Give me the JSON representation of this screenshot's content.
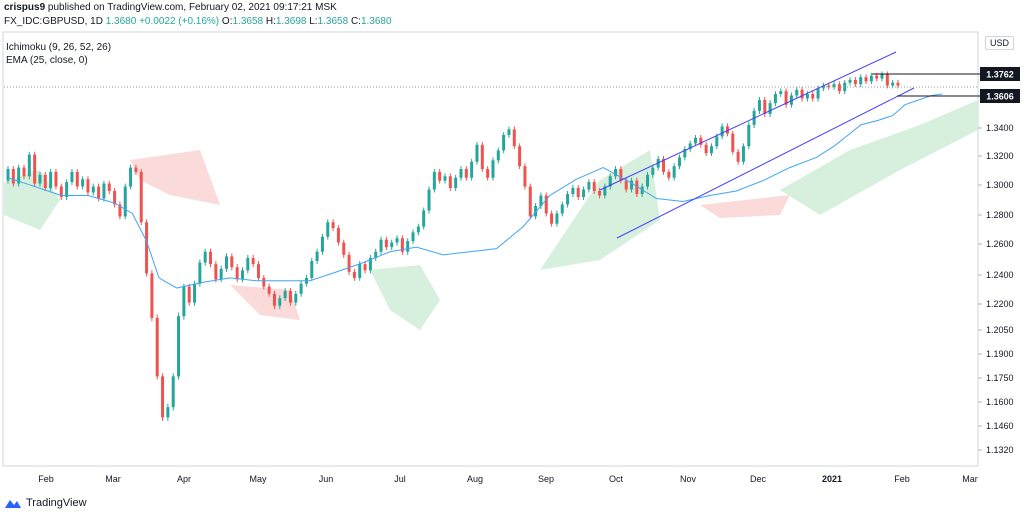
{
  "header": {
    "author": "crispus9",
    "published_text": "published on TradingView.com, February 02, 2021 09:17:21 MSK",
    "symbol": "FX_IDC:GBPUSD, 1D",
    "last": "1.3680",
    "change": "+0.0022 (+0.16%)",
    "o_label": "O:",
    "o_value": "1.3658",
    "h_label": "H:",
    "h_value": "1.3698",
    "l_label": "L:",
    "l_value": "1.3658",
    "c_label": "C:",
    "c_value": "1.3680"
  },
  "indicators": {
    "ichimoku": "Ichimoku (9, 26, 52, 26)",
    "ema": "EMA (25, close, 0)"
  },
  "currency_badge": "USD",
  "brand": "TradingView",
  "colors": {
    "up": "#26a69a",
    "down": "#ef5350",
    "ema": "#42a5f5",
    "channel": "#3f3fff",
    "cloud_bull": "#d7f0dd",
    "cloud_bear": "#fbdada"
  },
  "chart_data": {
    "type": "candlestick",
    "y_scale": {
      "range": [
        1.316,
        1.3885
      ],
      "ticks": [
        "1.3400",
        "1.3200",
        "1.3000",
        "1.2800",
        "1.2600",
        "1.2400",
        "1.2200",
        "1.2050",
        "1.1900",
        "1.1750",
        "1.1600",
        "1.1460",
        "1.1320"
      ],
      "tick_values": [
        1.34,
        1.32,
        1.3,
        1.28,
        1.26,
        1.24,
        1.22,
        1.205,
        1.19,
        1.175,
        1.16,
        1.146,
        1.132
      ]
    },
    "x_axis": {
      "labels": [
        "Feb",
        "Mar",
        "Apr",
        "May",
        "Jun",
        "Jul",
        "Aug",
        "Sep",
        "Oct",
        "Nov",
        "Dec",
        "2021",
        "Feb",
        "Mar"
      ],
      "bold": [
        "2021"
      ]
    },
    "price_labels": [
      {
        "text": "1.3762",
        "value": 1.3762
      },
      {
        "text": "1.3606",
        "value": 1.3606
      }
    ],
    "ema_points": [
      [
        0,
        1.305
      ],
      [
        10,
        1.301
      ],
      [
        20,
        1.297
      ],
      [
        30,
        1.293
      ],
      [
        45,
        1.293
      ],
      [
        60,
        1.288
      ],
      [
        70,
        1.281
      ],
      [
        78,
        1.262
      ],
      [
        85,
        1.238
      ],
      [
        95,
        1.231
      ],
      [
        110,
        1.235
      ],
      [
        125,
        1.238
      ],
      [
        140,
        1.236
      ],
      [
        155,
        1.236
      ],
      [
        170,
        1.236
      ],
      [
        185,
        1.242
      ],
      [
        200,
        1.248
      ],
      [
        215,
        1.255
      ],
      [
        230,
        1.258
      ],
      [
        245,
        1.253
      ],
      [
        260,
        1.255
      ],
      [
        275,
        1.257
      ],
      [
        290,
        1.272
      ],
      [
        305,
        1.293
      ],
      [
        320,
        1.304
      ],
      [
        335,
        1.312
      ],
      [
        350,
        1.302
      ],
      [
        365,
        1.291
      ],
      [
        380,
        1.289
      ],
      [
        395,
        1.293
      ],
      [
        410,
        1.296
      ],
      [
        425,
        1.303
      ],
      [
        440,
        1.312
      ],
      [
        455,
        1.319
      ],
      [
        465,
        1.327
      ],
      [
        472,
        1.334
      ],
      [
        480,
        1.342
      ],
      [
        490,
        1.345
      ],
      [
        498,
        1.348
      ],
      [
        505,
        1.355
      ],
      [
        515,
        1.359
      ],
      [
        520,
        1.361
      ],
      [
        526,
        1.362
      ]
    ],
    "candles": [
      [
        0,
        1.303,
        1.311
      ],
      [
        3,
        1.311,
        1.301
      ],
      [
        6,
        1.301,
        1.312
      ],
      [
        9,
        1.312,
        1.306
      ],
      [
        12,
        1.306,
        1.321
      ],
      [
        15,
        1.321,
        1.301
      ],
      [
        18,
        1.301,
        1.307
      ],
      [
        21,
        1.307,
        1.298
      ],
      [
        24,
        1.298,
        1.309
      ],
      [
        27,
        1.309,
        1.299
      ],
      [
        30,
        1.299,
        1.292
      ],
      [
        33,
        1.292,
        1.302
      ],
      [
        36,
        1.302,
        1.309
      ],
      [
        39,
        1.309,
        1.299
      ],
      [
        42,
        1.299,
        1.304
      ],
      [
        45,
        1.304,
        1.295
      ],
      [
        48,
        1.295,
        1.299
      ],
      [
        51,
        1.299,
        1.291
      ],
      [
        54,
        1.291,
        1.301
      ],
      [
        57,
        1.301,
        1.296
      ],
      [
        60,
        1.296,
        1.287
      ],
      [
        63,
        1.287,
        1.279
      ],
      [
        66,
        1.279,
        1.299
      ],
      [
        69,
        1.299,
        1.312
      ],
      [
        72,
        1.312,
        1.309
      ],
      [
        75,
        1.309,
        1.275
      ],
      [
        78,
        1.275,
        1.241
      ],
      [
        81,
        1.241,
        1.212
      ],
      [
        84,
        1.212,
        1.176
      ],
      [
        87,
        1.176,
        1.151
      ],
      [
        90,
        1.151,
        1.157
      ],
      [
        93,
        1.157,
        1.176
      ],
      [
        96,
        1.176,
        1.213
      ],
      [
        99,
        1.213,
        1.232
      ],
      [
        102,
        1.232,
        1.221
      ],
      [
        105,
        1.221,
        1.234
      ],
      [
        108,
        1.234,
        1.248
      ],
      [
        111,
        1.248,
        1.255
      ],
      [
        114,
        1.255,
        1.247
      ],
      [
        117,
        1.247,
        1.237
      ],
      [
        120,
        1.237,
        1.244
      ],
      [
        123,
        1.244,
        1.252
      ],
      [
        126,
        1.252,
        1.245
      ],
      [
        129,
        1.245,
        1.237
      ],
      [
        132,
        1.237,
        1.243
      ],
      [
        135,
        1.243,
        1.251
      ],
      [
        138,
        1.251,
        1.247
      ],
      [
        141,
        1.247,
        1.238
      ],
      [
        144,
        1.238,
        1.232
      ],
      [
        147,
        1.232,
        1.227
      ],
      [
        150,
        1.227,
        1.219
      ],
      [
        153,
        1.219,
        1.224
      ],
      [
        156,
        1.224,
        1.229
      ],
      [
        159,
        1.229,
        1.221
      ],
      [
        162,
        1.221,
        1.227
      ],
      [
        165,
        1.227,
        1.234
      ],
      [
        168,
        1.234,
        1.238
      ],
      [
        171,
        1.238,
        1.249
      ],
      [
        174,
        1.249,
        1.255
      ],
      [
        177,
        1.255,
        1.265
      ],
      [
        180,
        1.265,
        1.275
      ],
      [
        183,
        1.275,
        1.271
      ],
      [
        186,
        1.271,
        1.261
      ],
      [
        189,
        1.261,
        1.253
      ],
      [
        192,
        1.253,
        1.242
      ],
      [
        195,
        1.242,
        1.238
      ],
      [
        198,
        1.238,
        1.247
      ],
      [
        201,
        1.247,
        1.243
      ],
      [
        204,
        1.243,
        1.251
      ],
      [
        207,
        1.251,
        1.255
      ],
      [
        210,
        1.255,
        1.263
      ],
      [
        213,
        1.263,
        1.258
      ],
      [
        216,
        1.258,
        1.261
      ],
      [
        219,
        1.261,
        1.264
      ],
      [
        222,
        1.264,
        1.255
      ],
      [
        225,
        1.255,
        1.262
      ],
      [
        228,
        1.262,
        1.268
      ],
      [
        231,
        1.268,
        1.272
      ],
      [
        234,
        1.272,
        1.283
      ],
      [
        237,
        1.283,
        1.297
      ],
      [
        240,
        1.297,
        1.309
      ],
      [
        243,
        1.309,
        1.303
      ],
      [
        246,
        1.303,
        1.306
      ],
      [
        249,
        1.306,
        1.298
      ],
      [
        252,
        1.298,
        1.305
      ],
      [
        255,
        1.305,
        1.311
      ],
      [
        258,
        1.311,
        1.305
      ],
      [
        261,
        1.305,
        1.316
      ],
      [
        264,
        1.316,
        1.328
      ],
      [
        267,
        1.328,
        1.311
      ],
      [
        270,
        1.311,
        1.305
      ],
      [
        273,
        1.305,
        1.317
      ],
      [
        276,
        1.317,
        1.324
      ],
      [
        279,
        1.324,
        1.335
      ],
      [
        282,
        1.335,
        1.339
      ],
      [
        285,
        1.339,
        1.327
      ],
      [
        288,
        1.327,
        1.313
      ],
      [
        291,
        1.313,
        1.299
      ],
      [
        294,
        1.299,
        1.279
      ],
      [
        297,
        1.279,
        1.286
      ],
      [
        300,
        1.286,
        1.293
      ],
      [
        303,
        1.293,
        1.281
      ],
      [
        306,
        1.281,
        1.274
      ],
      [
        309,
        1.274,
        1.281
      ],
      [
        312,
        1.281,
        1.287
      ],
      [
        315,
        1.287,
        1.294
      ],
      [
        318,
        1.294,
        1.298
      ],
      [
        321,
        1.298,
        1.292
      ],
      [
        324,
        1.292,
        1.297
      ],
      [
        327,
        1.297,
        1.302
      ],
      [
        330,
        1.302,
        1.296
      ],
      [
        333,
        1.296,
        1.293
      ],
      [
        336,
        1.293,
        1.299
      ],
      [
        339,
        1.299,
        1.306
      ],
      [
        342,
        1.306,
        1.311
      ],
      [
        345,
        1.311,
        1.303
      ],
      [
        348,
        1.303,
        1.297
      ],
      [
        351,
        1.297,
        1.303
      ],
      [
        354,
        1.303,
        1.294
      ],
      [
        357,
        1.294,
        1.299
      ],
      [
        360,
        1.299,
        1.307
      ],
      [
        363,
        1.307,
        1.312
      ],
      [
        366,
        1.312,
        1.318
      ],
      [
        369,
        1.318,
        1.309
      ],
      [
        372,
        1.309,
        1.305
      ],
      [
        375,
        1.305,
        1.313
      ],
      [
        378,
        1.313,
        1.319
      ],
      [
        381,
        1.319,
        1.325
      ],
      [
        384,
        1.325,
        1.329
      ],
      [
        387,
        1.329,
        1.333
      ],
      [
        390,
        1.333,
        1.328
      ],
      [
        393,
        1.328,
        1.322
      ],
      [
        396,
        1.322,
        1.327
      ],
      [
        399,
        1.327,
        1.334
      ],
      [
        402,
        1.334,
        1.341
      ],
      [
        405,
        1.341,
        1.336
      ],
      [
        408,
        1.336,
        1.323
      ],
      [
        411,
        1.323,
        1.316
      ],
      [
        414,
        1.316,
        1.327
      ],
      [
        417,
        1.327,
        1.342
      ],
      [
        420,
        1.342,
        1.351
      ],
      [
        423,
        1.351,
        1.358
      ],
      [
        426,
        1.358,
        1.349
      ],
      [
        429,
        1.349,
        1.356
      ],
      [
        432,
        1.356,
        1.362
      ],
      [
        435,
        1.362,
        1.364
      ],
      [
        438,
        1.364,
        1.355
      ],
      [
        441,
        1.355,
        1.361
      ],
      [
        444,
        1.361,
        1.365
      ],
      [
        447,
        1.365,
        1.359
      ],
      [
        450,
        1.359,
        1.362
      ],
      [
        453,
        1.362,
        1.359
      ],
      [
        456,
        1.359,
        1.366
      ],
      [
        459,
        1.366,
        1.368
      ],
      [
        462,
        1.368,
        1.367
      ],
      [
        465,
        1.367,
        1.369
      ],
      [
        468,
        1.369,
        1.364
      ],
      [
        471,
        1.364,
        1.37
      ],
      [
        474,
        1.37,
        1.372
      ],
      [
        477,
        1.372,
        1.369
      ],
      [
        480,
        1.369,
        1.374
      ],
      [
        483,
        1.374,
        1.371
      ],
      [
        486,
        1.371,
        1.375
      ],
      [
        489,
        1.375,
        1.373
      ],
      [
        492,
        1.373,
        1.376
      ],
      [
        495,
        1.376,
        1.368
      ],
      [
        498,
        1.368,
        1.37
      ],
      [
        501,
        1.37,
        1.368
      ]
    ]
  }
}
